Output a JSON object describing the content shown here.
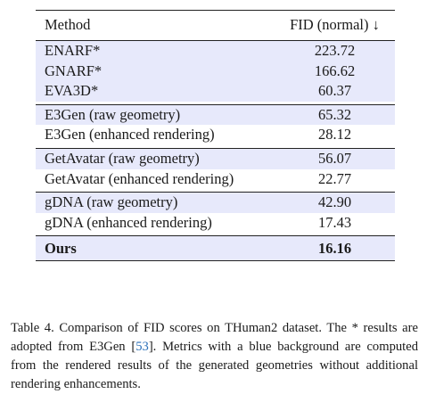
{
  "table": {
    "header": {
      "method": "Method",
      "fid": "FID (normal) ↓"
    },
    "groups": [
      {
        "rows": [
          {
            "method": "ENARF*",
            "fid": "223.72",
            "blue": true
          },
          {
            "method": "GNARF*",
            "fid": "166.62",
            "blue": true
          },
          {
            "method": "EVA3D*",
            "fid": "60.37",
            "blue": true
          }
        ]
      },
      {
        "rows": [
          {
            "method": "E3Gen (raw geometry)",
            "fid": "65.32",
            "blue": true
          },
          {
            "method": "E3Gen (enhanced rendering)",
            "fid": "28.12",
            "blue": false
          }
        ]
      },
      {
        "rows": [
          {
            "method": "GetAvatar (raw geometry)",
            "fid": "56.07",
            "blue": true
          },
          {
            "method": "GetAvatar (enhanced rendering)",
            "fid": "22.77",
            "blue": false
          }
        ]
      },
      {
        "rows": [
          {
            "method": "gDNA (raw geometry)",
            "fid": "42.90",
            "blue": true
          },
          {
            "method": "gDNA (enhanced rendering)",
            "fid": "17.43",
            "blue": false
          }
        ]
      }
    ],
    "ours": {
      "method": "Ours",
      "fid": "16.16",
      "blue": true
    },
    "highlight_color": "#e7e9fb"
  },
  "caption": {
    "prefix": "Table 4.  Comparison of FID scores on THuman2 dataset.  The * results are adopted from E3Gen [",
    "ref": "53",
    "suffix": "].  Metrics with a blue background are computed from the rendered results of the generated geometries without additional rendering enhancements."
  }
}
